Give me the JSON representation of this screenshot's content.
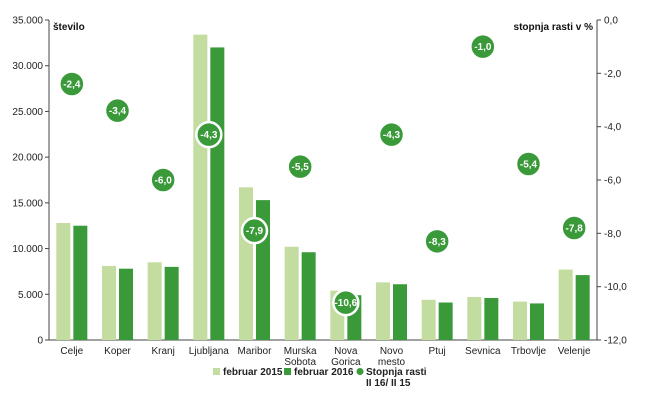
{
  "chart_data": {
    "type": "bar",
    "left_axis_label": "število",
    "right_axis_label": "stopnja rasti v %",
    "categories": [
      [
        "Celje"
      ],
      [
        "Koper"
      ],
      [
        "Kranj"
      ],
      [
        "Ljubljana"
      ],
      [
        "Maribor"
      ],
      [
        "Murska",
        "Sobota"
      ],
      [
        "Nova",
        "Gorica"
      ],
      [
        "Novo",
        "mesto"
      ],
      [
        "Ptuj"
      ],
      [
        "Sevnica"
      ],
      [
        "Trbovlje"
      ],
      [
        "Velenje"
      ]
    ],
    "ylim_left": [
      0,
      35000
    ],
    "yticks_left": [
      "0",
      "5.000",
      "10.000",
      "15.000",
      "20.000",
      "25.000",
      "30.000",
      "35.000"
    ],
    "ylim_right": [
      -12,
      0
    ],
    "yticks_right": [
      "0,0",
      "-2,0",
      "-4,0",
      "-6,0",
      "-8,0",
      "-10,0",
      "-12,0"
    ],
    "series": [
      {
        "name": "februar 2015",
        "type": "bar",
        "color": "#c3dca0",
        "values": [
          12800,
          8100,
          8500,
          33400,
          16700,
          10200,
          5400,
          6300,
          4400,
          4700,
          4200,
          7700
        ]
      },
      {
        "name": "februar 2016",
        "type": "bar",
        "color": "#3a9a3a",
        "values": [
          12500,
          7800,
          8000,
          32000,
          15300,
          9600,
          4900,
          6100,
          4100,
          4600,
          4000,
          7100
        ]
      },
      {
        "name_lines": [
          "Stopnja rasti",
          "II 16/ II 15"
        ],
        "type": "scatter",
        "axis": "right",
        "color": "#3a9a3a",
        "values": [
          -2.4,
          -3.4,
          -6.0,
          -4.3,
          -7.9,
          -5.5,
          -10.6,
          -4.3,
          -8.3,
          -1.0,
          -5.4,
          -7.8
        ],
        "labels": [
          "-2,4",
          "-3,4",
          "-6,0",
          "-4,3",
          "-7,9",
          "-5,5",
          "-10,6",
          "-4,3",
          "-8,3",
          "-1,0",
          "-5,4",
          "-7,8"
        ]
      }
    ],
    "grid": false,
    "legend": "bottom"
  }
}
